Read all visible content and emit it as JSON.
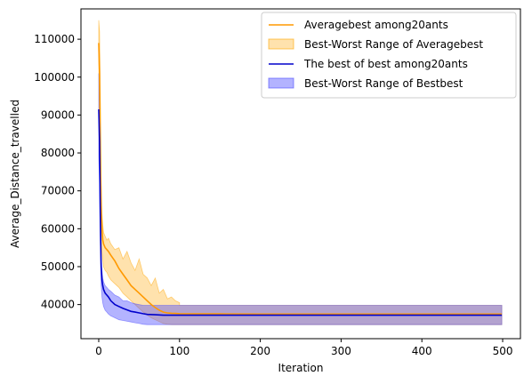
{
  "chart_data": {
    "type": "line",
    "title": "",
    "xlabel": "Iteration",
    "ylabel": "Average_Distance_travelled",
    "xlim": [
      -22,
      522
    ],
    "ylim": [
      31000,
      118000
    ],
    "xticks": [
      0,
      100,
      200,
      300,
      400,
      500
    ],
    "yticks": [
      40000,
      50000,
      60000,
      70000,
      80000,
      90000,
      100000,
      110000
    ],
    "grid": false,
    "legend_position": "top-right",
    "colors": {
      "average_line": "#ff9900",
      "average_band": "#ffa500",
      "best_line": "#0000cc",
      "best_band": "#4a4aff"
    },
    "series": [
      {
        "name": "Averagebest among20ants",
        "kind": "line",
        "color": "#ff9900",
        "x": [
          0,
          1,
          2,
          3,
          4,
          5,
          6,
          8,
          10,
          12,
          15,
          20,
          25,
          30,
          35,
          40,
          45,
          50,
          55,
          60,
          65,
          70,
          75,
          80,
          85,
          90,
          95,
          100,
          120,
          150,
          200,
          300,
          400,
          499
        ],
        "y": [
          109000,
          101000,
          80000,
          66000,
          60000,
          57000,
          56000,
          55000,
          54500,
          54000,
          53000,
          51500,
          49500,
          48000,
          46500,
          45000,
          44000,
          43000,
          42000,
          41000,
          40000,
          39200,
          38500,
          38000,
          37800,
          37700,
          37650,
          37600,
          37550,
          37550,
          37500,
          37500,
          37500,
          37500
        ]
      },
      {
        "name": "Best-Worst Range of Averagebest",
        "kind": "band",
        "color": "#ffa500",
        "x": [
          0,
          1,
          2,
          3,
          4,
          5,
          6,
          8,
          10,
          12,
          15,
          20,
          25,
          30,
          35,
          40,
          45,
          50,
          55,
          60,
          65,
          70,
          75,
          80,
          85,
          90,
          95,
          100,
          100,
          120,
          200,
          300,
          400,
          499
        ],
        "upper": [
          115000,
          112000,
          95000,
          72000,
          64000,
          61000,
          59000,
          58000,
          57000,
          57500,
          56000,
          54500,
          55000,
          52000,
          54000,
          51000,
          49000,
          52000,
          48000,
          47000,
          45000,
          47000,
          43000,
          44000,
          41500,
          42000,
          41000,
          40500,
          39800,
          39800,
          39800,
          39800,
          39800,
          39800
        ],
        "lower": [
          104000,
          90000,
          64000,
          57000,
          54000,
          52000,
          50000,
          49000,
          48500,
          47500,
          46500,
          45500,
          44500,
          43000,
          42000,
          41000,
          40000,
          39000,
          38000,
          37200,
          36500,
          36000,
          35500,
          35000,
          34800,
          34700,
          34700,
          34700,
          34700,
          34700,
          34700,
          34700,
          34700,
          34700
        ]
      },
      {
        "name": "The best of best among20ants",
        "kind": "line",
        "color": "#0000cc",
        "x": [
          0,
          1,
          2,
          3,
          4,
          5,
          6,
          8,
          10,
          12,
          15,
          20,
          25,
          30,
          35,
          40,
          45,
          50,
          55,
          60,
          70,
          80,
          100,
          200,
          300,
          400,
          499
        ],
        "y": [
          91500,
          83000,
          62000,
          50000,
          46500,
          45000,
          44000,
          43000,
          42500,
          42000,
          41000,
          40000,
          39500,
          39000,
          38600,
          38200,
          38000,
          37800,
          37600,
          37400,
          37300,
          37200,
          37200,
          37200,
          37200,
          37200,
          37200
        ]
      },
      {
        "name": "Best-Worst Range of Bestbest",
        "kind": "band",
        "color": "#4a4aff",
        "x": [
          0,
          1,
          2,
          3,
          4,
          5,
          6,
          8,
          10,
          12,
          15,
          20,
          25,
          30,
          35,
          40,
          45,
          50,
          55,
          60,
          70,
          80,
          100,
          200,
          300,
          400,
          499
        ],
        "upper": [
          101000,
          93000,
          66000,
          53000,
          49000,
          47000,
          46000,
          45000,
          44500,
          44000,
          43500,
          42500,
          42000,
          41000,
          41000,
          40500,
          40200,
          40000,
          39800,
          39800,
          39800,
          39800,
          39800,
          39800,
          39800,
          39800,
          39800
        ],
        "lower": [
          79000,
          72000,
          56000,
          45000,
          42000,
          40500,
          39500,
          38500,
          38000,
          37500,
          37000,
          36500,
          36000,
          35800,
          35600,
          35400,
          35200,
          35000,
          34800,
          34700,
          34700,
          34700,
          34700,
          34700,
          34700,
          34700,
          34700
        ]
      }
    ]
  }
}
